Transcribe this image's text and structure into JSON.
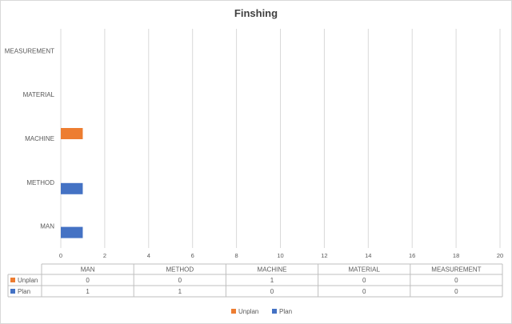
{
  "chart_data": {
    "type": "bar",
    "orientation": "horizontal",
    "title": "Finshing",
    "categories": [
      "MAN",
      "METHOD",
      "MACHINE",
      "MATERIAL",
      "MEASUREMENT"
    ],
    "series": [
      {
        "name": "Unplan",
        "color": "#ED7D31",
        "values": [
          0,
          0,
          1,
          0,
          0
        ]
      },
      {
        "name": "Plan",
        "color": "#4472C4",
        "values": [
          1,
          1,
          0,
          0,
          0
        ]
      }
    ],
    "xlim": [
      0,
      20
    ],
    "xticks": [
      0,
      2,
      4,
      6,
      8,
      10,
      12,
      14,
      16,
      18,
      20
    ],
    "grid": true,
    "legend": "bottom",
    "data_table": true
  }
}
